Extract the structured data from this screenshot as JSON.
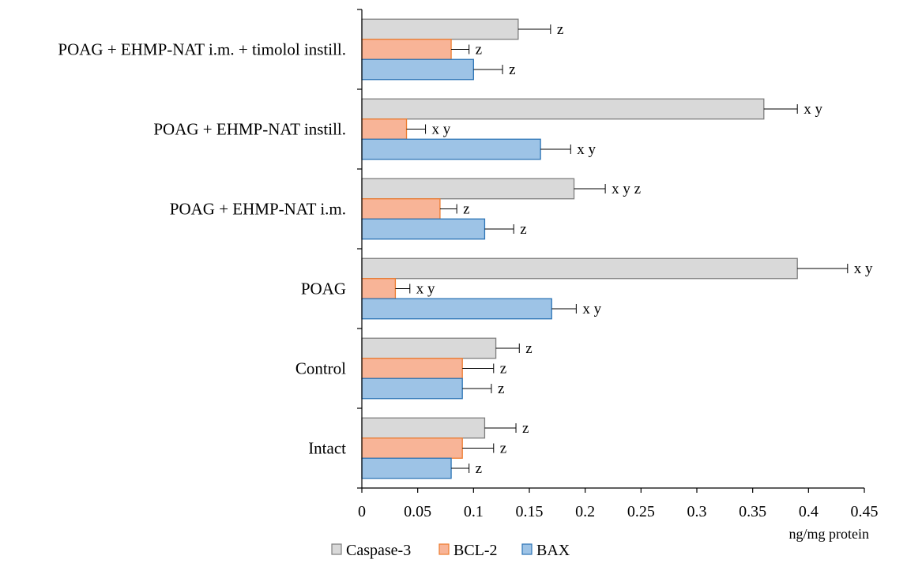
{
  "chart_data": {
    "type": "bar",
    "orientation": "horizontal",
    "categories": [
      "Intact",
      "Control",
      "POAG",
      "POAG + EHMP-NAT i.m.",
      "POAG + EHMP-NAT instill.",
      "POAG + EHMP-NAT i.m. + timolol instill."
    ],
    "series": [
      {
        "name": "Caspase-3",
        "color": "#d9d9d9",
        "edge": "#7f7f7f",
        "values": [
          0.11,
          0.12,
          0.39,
          0.19,
          0.36,
          0.14
        ],
        "errors": [
          0.028,
          0.021,
          0.045,
          0.028,
          0.03,
          0.029
        ],
        "labels": [
          "z",
          "z",
          "x y",
          "x y z",
          "x y",
          "z"
        ]
      },
      {
        "name": "BCL-2",
        "color": "#f8b497",
        "edge": "#ed7d31",
        "values": [
          0.09,
          0.09,
          0.03,
          0.07,
          0.04,
          0.08
        ],
        "errors": [
          0.028,
          0.028,
          0.013,
          0.015,
          0.017,
          0.016
        ],
        "labels": [
          "z",
          "z",
          "x y",
          "z",
          "x y",
          "z"
        ]
      },
      {
        "name": "BAX",
        "color": "#9dc3e6",
        "edge": "#2e75b6",
        "values": [
          0.08,
          0.09,
          0.17,
          0.11,
          0.16,
          0.1
        ],
        "errors": [
          0.016,
          0.026,
          0.022,
          0.026,
          0.027,
          0.026
        ],
        "labels": [
          "z",
          "z",
          "x y",
          "z",
          "x y",
          "z"
        ]
      }
    ],
    "xlabel": "ng/mg protein",
    "xlim": [
      0,
      0.45
    ],
    "xticks": [
      "0",
      "0.05",
      "0.1",
      "0.15",
      "0.2",
      "0.25",
      "0.3",
      "0.35",
      "0.4",
      "0.45"
    ],
    "grid": false,
    "legend": "bottom"
  }
}
